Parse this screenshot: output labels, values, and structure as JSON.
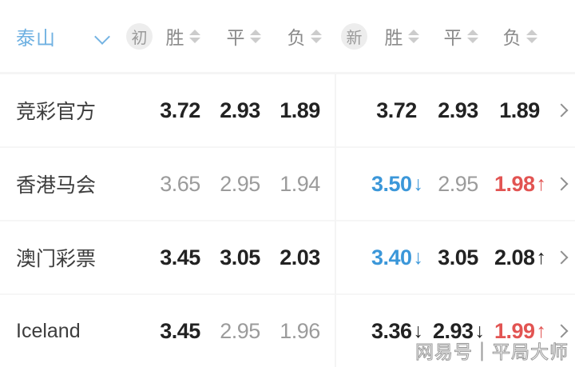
{
  "header": {
    "team_filter": {
      "label": "泰山"
    },
    "badges": {
      "initial": "初",
      "new": "新"
    },
    "cols": [
      "胜",
      "平",
      "负"
    ]
  },
  "rows": [
    {
      "name": "竞彩官方",
      "initial": [
        {
          "v": "3.72",
          "s": "strong"
        },
        {
          "v": "2.93",
          "s": "strong"
        },
        {
          "v": "1.89",
          "s": "strong"
        }
      ],
      "latest": [
        {
          "v": "3.72",
          "s": "strong"
        },
        {
          "v": "2.93",
          "s": "strong"
        },
        {
          "v": "1.89",
          "s": "strong"
        }
      ]
    },
    {
      "name": "香港马会",
      "initial": [
        {
          "v": "3.65",
          "s": "muted"
        },
        {
          "v": "2.95",
          "s": "muted"
        },
        {
          "v": "1.94",
          "s": "muted"
        }
      ],
      "latest": [
        {
          "v": "3.50",
          "s": "down",
          "arrow": "↓"
        },
        {
          "v": "2.95",
          "s": "muted"
        },
        {
          "v": "1.98",
          "s": "up",
          "arrow": "↑"
        }
      ]
    },
    {
      "name": "澳门彩票",
      "initial": [
        {
          "v": "3.45",
          "s": "strong"
        },
        {
          "v": "3.05",
          "s": "strong"
        },
        {
          "v": "2.03",
          "s": "strong"
        }
      ],
      "latest": [
        {
          "v": "3.40",
          "s": "down",
          "arrow": "↓"
        },
        {
          "v": "3.05",
          "s": "strong"
        },
        {
          "v": "2.08",
          "s": "strong",
          "arrow": "↑"
        }
      ]
    },
    {
      "name": "Iceland",
      "initial": [
        {
          "v": "3.45",
          "s": "strong"
        },
        {
          "v": "2.95",
          "s": "muted"
        },
        {
          "v": "1.96",
          "s": "muted"
        }
      ],
      "latest": [
        {
          "v": "3.36",
          "s": "strong",
          "arrow": "↓"
        },
        {
          "v": "2.93",
          "s": "strong",
          "arrow": "↓"
        },
        {
          "v": "1.99",
          "s": "up",
          "arrow": "↑"
        }
      ]
    }
  ],
  "watermark": "网易号｜平局大师",
  "colors": {
    "team_blue": "#6fb1e2",
    "odds_down_blue": "#3b97d9",
    "odds_up_red": "#e25452",
    "strong_text": "#222222",
    "muted_text": "#9b9b9b",
    "header_text": "#8a8a8a",
    "badge_bg": "#ededed",
    "divider": "#f4f4f4"
  }
}
